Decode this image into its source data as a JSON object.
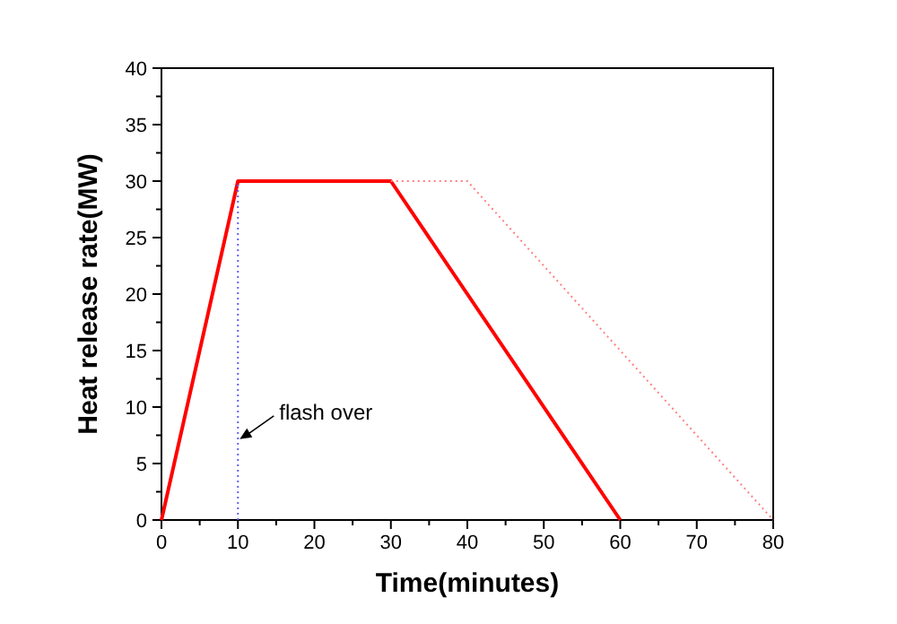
{
  "chart_data": {
    "type": "line",
    "xlabel": "Time(minutes)",
    "ylabel": "Heat release rate(MW)",
    "xlim": [
      0,
      80
    ],
    "xticks": [
      0,
      10,
      20,
      30,
      40,
      50,
      60,
      70,
      80
    ],
    "ylim": [
      0,
      40
    ],
    "yticks": [
      0,
      5,
      10,
      15,
      20,
      25,
      30,
      35,
      40
    ],
    "series": [
      {
        "x": [
          0,
          10,
          30,
          60
        ],
        "values": [
          0,
          30,
          30,
          0
        ],
        "color": "#ff0000",
        "line_style": "solid"
      },
      {
        "x": [
          30,
          40,
          80
        ],
        "values": [
          30,
          30,
          0
        ],
        "color": "#ff8080",
        "line_style": "dotted"
      },
      {
        "x": [
          10,
          10
        ],
        "values": [
          0,
          30
        ],
        "color": "#6060ff",
        "line_style": "dotted"
      }
    ],
    "annotations": [
      {
        "text": "flash over",
        "x": 10,
        "y": 7
      }
    ]
  }
}
